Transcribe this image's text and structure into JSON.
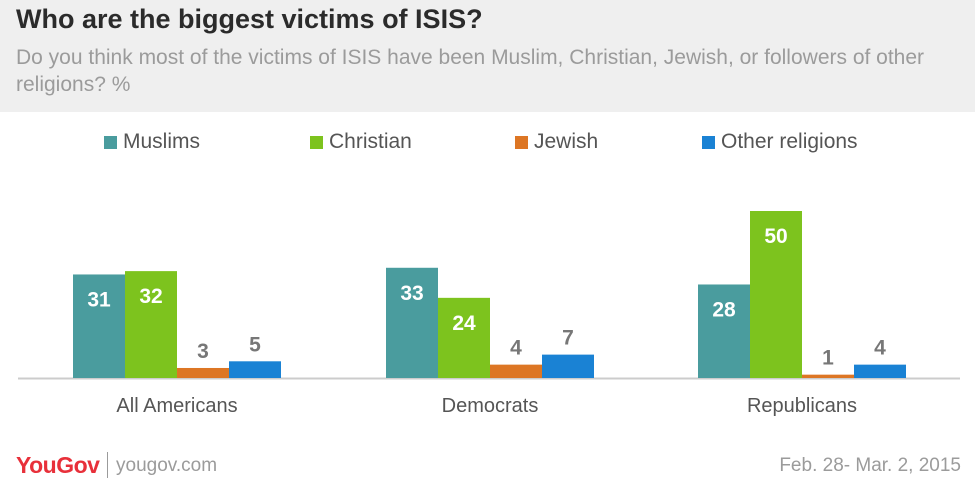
{
  "header": {
    "title": "Who are the biggest victims of ISIS?",
    "subtitle": "Do you think most of the victims of ISIS have been Muslim, Christian, Jewish, or followers of other religions? %"
  },
  "chart_data": {
    "type": "bar",
    "title": "Who are the biggest victims of ISIS?",
    "subtitle": "Do you think most of the victims of ISIS have been Muslim, Christian, Jewish, or followers of other religions? %",
    "categories": [
      "All Americans",
      "Democrats",
      "Republicans"
    ],
    "series": [
      {
        "name": "Muslims",
        "color": "#4a9c9e",
        "values": [
          31,
          33,
          28
        ]
      },
      {
        "name": "Christian",
        "color": "#7dc31e",
        "values": [
          32,
          24,
          50
        ]
      },
      {
        "name": "Jewish",
        "color": "#dd7624",
        "values": [
          3,
          4,
          1
        ]
      },
      {
        "name": "Other religions",
        "color": "#1a82d4",
        "values": [
          5,
          7,
          4
        ]
      }
    ],
    "ylim": [
      0,
      55
    ],
    "grid": false,
    "legend_position": "top"
  },
  "footer": {
    "brand": "YouGov",
    "site": "yougov.com",
    "date": "Feb. 28- Mar. 2, 2015"
  },
  "colors": {
    "header_bg": "#efefef",
    "brand_red": "#e8303a",
    "axis": "#cccccc",
    "label_dark": "#777777"
  }
}
